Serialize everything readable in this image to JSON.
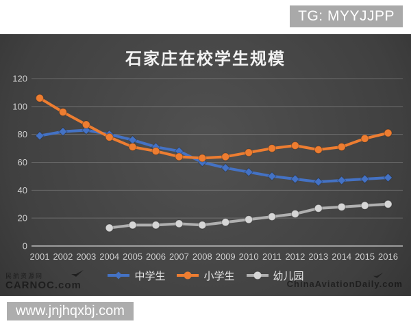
{
  "overlay": {
    "tg_label": "TG: MYYJJPP",
    "url_label": "www.jnjhqxbj.com"
  },
  "watermarks": {
    "carnoc_cn": "民航资源网",
    "carnoc": "CARNOC.com",
    "chinaaviationdaily": "ChinaAviationDaily.com"
  },
  "colors": {
    "panel_dark": "#3d3d3d",
    "axis_text": "#d0d0d0",
    "gridline": "rgba(255,255,255,0.22)",
    "badge_gray": "#a9a9a9"
  },
  "chart_data": {
    "type": "line",
    "title": "石家庄在校学生规模",
    "x": [
      2001,
      2002,
      2003,
      2004,
      2005,
      2006,
      2007,
      2008,
      2009,
      2010,
      2011,
      2012,
      2013,
      2014,
      2015,
      2016
    ],
    "series": [
      {
        "name": "中学生",
        "color": "#4472c4",
        "marker": "diamond",
        "values": [
          79,
          82,
          83,
          80,
          76,
          71,
          68,
          60,
          56,
          53,
          50,
          48,
          46,
          47,
          48,
          49
        ]
      },
      {
        "name": "小学生",
        "color": "#ed7d31",
        "marker": "circle",
        "values": [
          106,
          96,
          87,
          78,
          71,
          68,
          64,
          63,
          64,
          67,
          70,
          72,
          69,
          71,
          77,
          81
        ]
      },
      {
        "name": "幼儿园",
        "color": "#b0b0b0",
        "marker_fill": "#d6d6d6",
        "marker": "circle",
        "values": [
          null,
          null,
          null,
          13,
          15,
          15,
          16,
          15,
          17,
          19,
          21,
          23,
          27,
          28,
          29,
          30
        ]
      }
    ],
    "ylim": [
      0,
      120
    ],
    "ytick_step": 20,
    "grid": true,
    "legend_position": "bottom"
  }
}
